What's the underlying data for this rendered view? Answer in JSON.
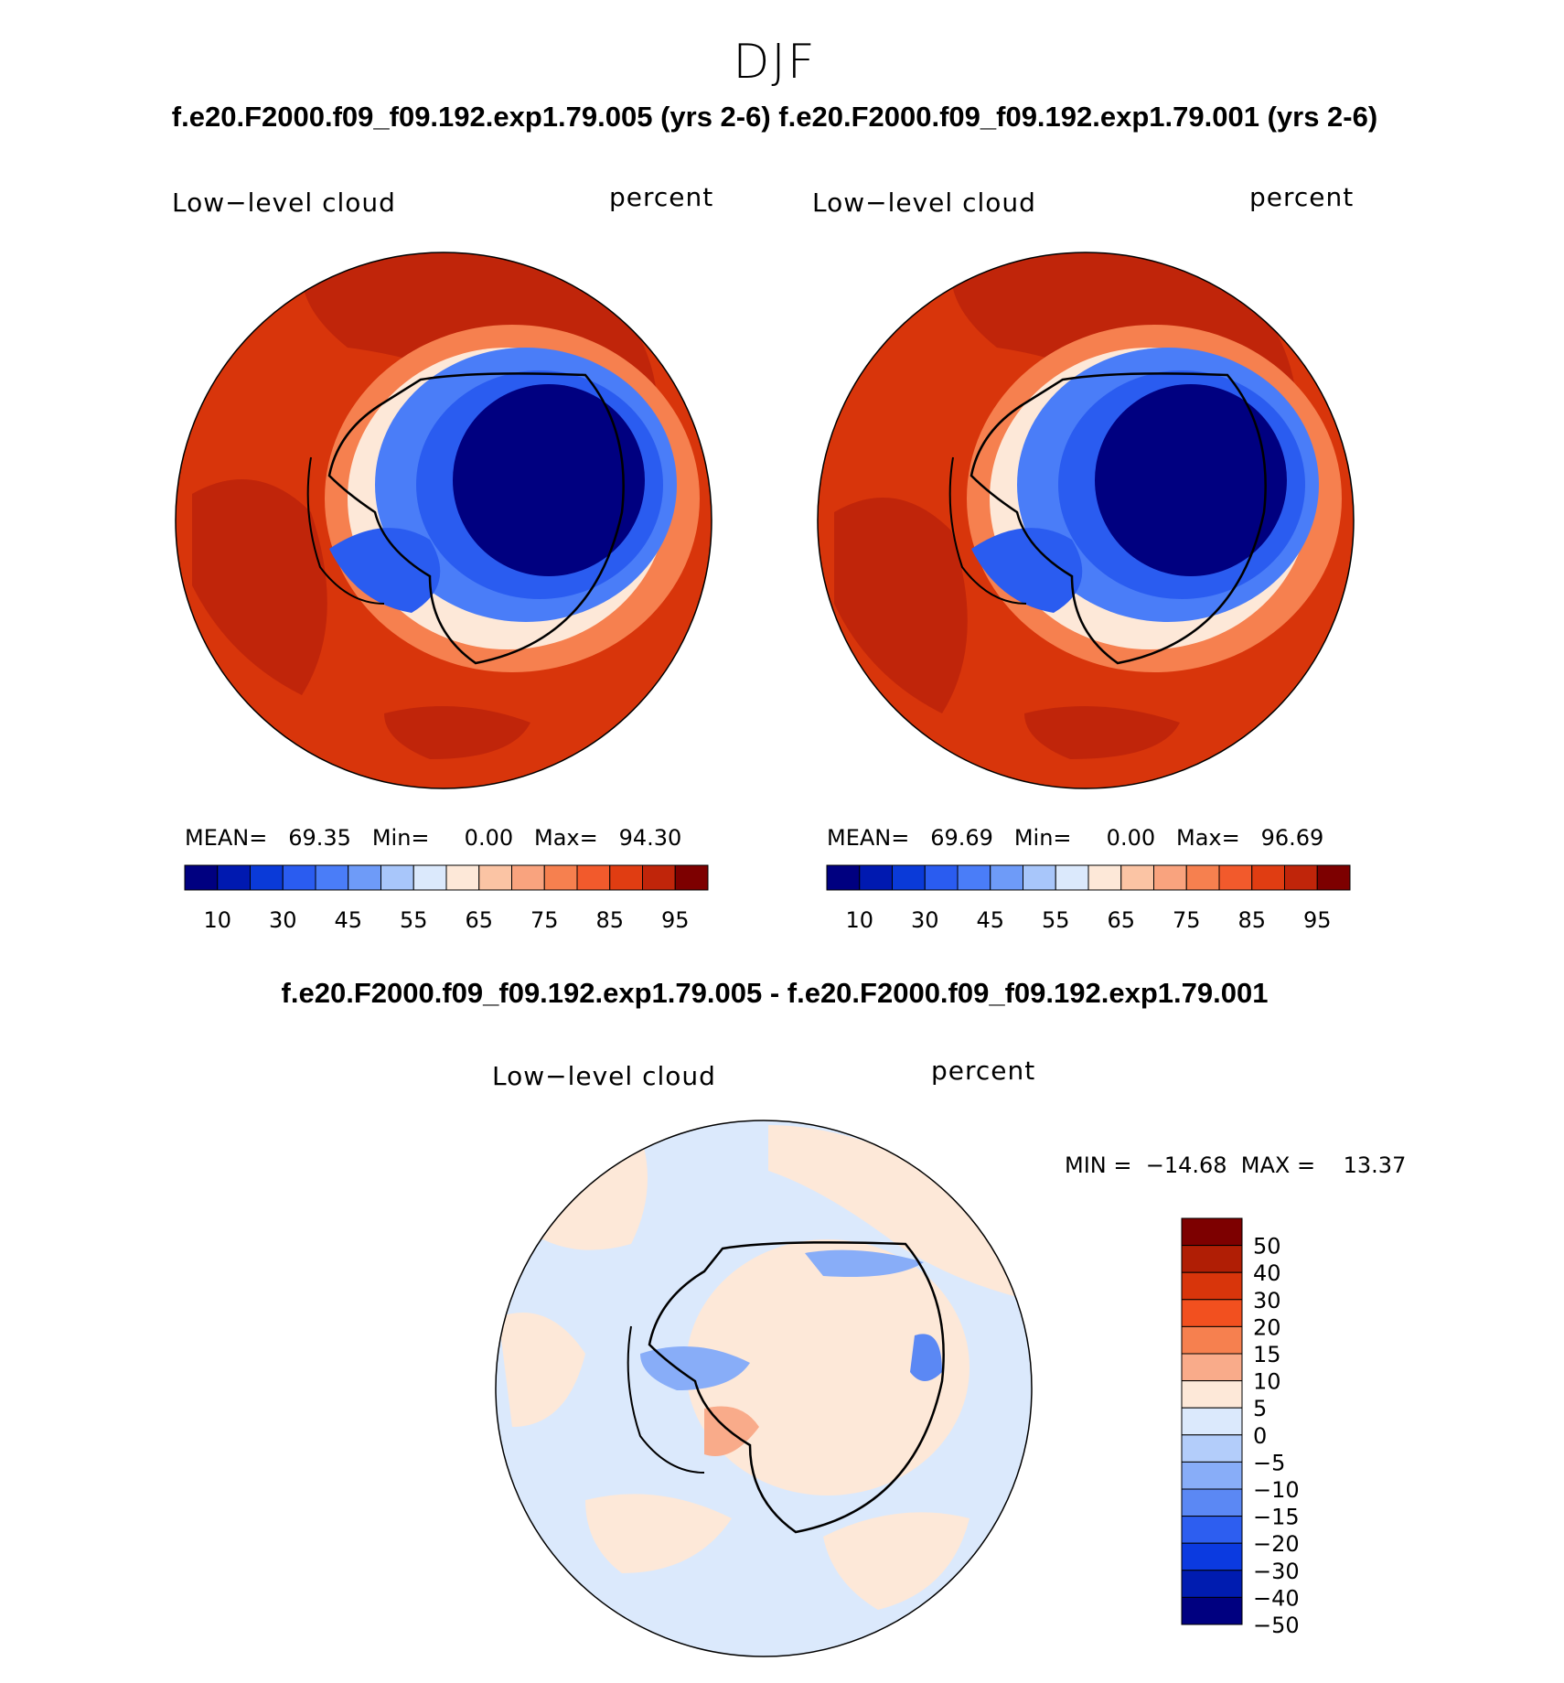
{
  "figure": {
    "season": "DJF",
    "header": "f.e20.F2000.f09_f09.192.exp1.79.005 (yrs 2-6) f.e20.F2000.f09_f09.192.exp1.79.001 (yrs 2-6)",
    "diff_header": "f.e20.F2000.f09_f09.192.exp1.79.005 - f.e20.F2000.f09_f09.192.exp1.79.001"
  },
  "panels": [
    {
      "variable": "Low−level cloud",
      "units": "percent",
      "stats": "MEAN=   69.35   Min=     0.00   Max=   94.30"
    },
    {
      "variable": "Low−level cloud",
      "units": "percent",
      "stats": "MEAN=   69.69   Min=     0.00   Max=   96.69"
    }
  ],
  "diff_panel": {
    "variable": "Low−level cloud",
    "units": "percent",
    "stats": "MIN =  −14.68  MAX =    13.37"
  },
  "abs_colorbar": {
    "colors": [
      "#000080",
      "#0019b0",
      "#0a3ad8",
      "#2a5cf0",
      "#4a7df8",
      "#6e9bf8",
      "#a8c6fa",
      "#dbe9fc",
      "#fde8d8",
      "#fbc4a4",
      "#f9a37e",
      "#f6804f",
      "#f25a2c",
      "#e03d12",
      "#c0250a",
      "#7d0000"
    ],
    "labels": [
      "10",
      "30",
      "45",
      "55",
      "65",
      "75",
      "85",
      "95"
    ]
  },
  "diff_colorbar": {
    "colors": [
      "#7d0000",
      "#b01e05",
      "#d8350b",
      "#f2501f",
      "#f6804f",
      "#f9ab8a",
      "#fde8d8",
      "#dbe9fc",
      "#b3cdfa",
      "#88adf8",
      "#5b88f4",
      "#2d5ef0",
      "#0b3ae0",
      "#001cb0",
      "#000080"
    ],
    "labels": [
      "50",
      "40",
      "30",
      "20",
      "15",
      "10",
      "5",
      "0",
      "−5",
      "−10",
      "−15",
      "−20",
      "−30",
      "−40",
      "−50"
    ]
  }
}
